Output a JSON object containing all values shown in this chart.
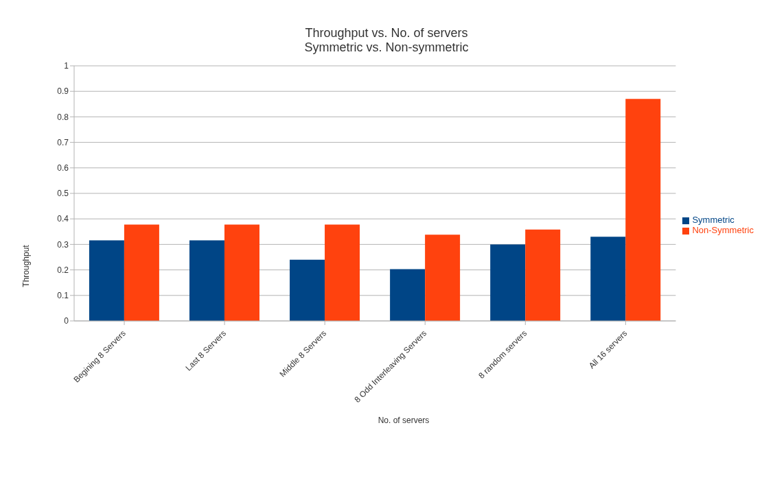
{
  "chart_data": {
    "type": "bar",
    "title": "Throughput vs. No. of servers",
    "subtitle": "Symmetric vs. Non-symmetric",
    "xlabel": "No. of servers",
    "ylabel": "Throughput",
    "categories": [
      "Begining 8 Servers",
      "Last 8 Servers",
      "Middle 8 Servers",
      "8 Odd Interleaving Servers",
      "8 random servers",
      "All 16 servers"
    ],
    "series": [
      {
        "name": "Symmetric",
        "color": "#004586",
        "values": [
          0.316,
          0.316,
          0.24,
          0.203,
          0.3,
          0.33
        ]
      },
      {
        "name": "Non-Symmetric",
        "color": "#ff420e",
        "values": [
          0.378,
          0.378,
          0.378,
          0.338,
          0.358,
          0.87
        ]
      }
    ],
    "ylim": [
      0,
      1
    ],
    "yticks": [
      0,
      0.1,
      0.2,
      0.3,
      0.4,
      0.5,
      0.6,
      0.7,
      0.8,
      0.9,
      1
    ],
    "grid": "y",
    "legend": "right"
  }
}
